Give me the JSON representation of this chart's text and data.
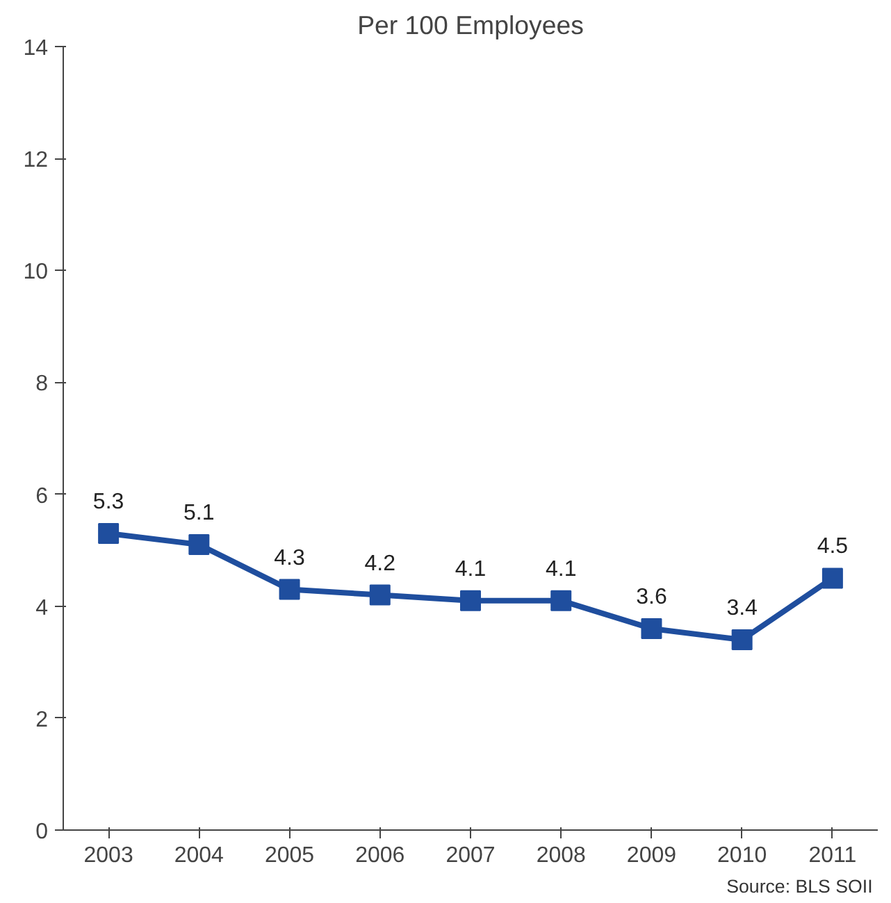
{
  "chart_data": {
    "type": "line",
    "title": "Per 100 Employees",
    "categories": [
      "2003",
      "2004",
      "2005",
      "2006",
      "2007",
      "2008",
      "2009",
      "2010",
      "2011"
    ],
    "series": [
      {
        "color": "#1f4e9e",
        "values": [
          5.3,
          5.1,
          4.3,
          4.2,
          4.1,
          4.1,
          3.6,
          3.4,
          4.5
        ]
      }
    ],
    "ylim": [
      0,
      14
    ],
    "yticks": [
      0,
      2,
      4,
      6,
      8,
      10,
      12,
      14
    ],
    "grid": false,
    "marker": "square",
    "line_style": "solid",
    "data_labels": true,
    "annotations": [
      "Source:  BLS SOII"
    ]
  }
}
